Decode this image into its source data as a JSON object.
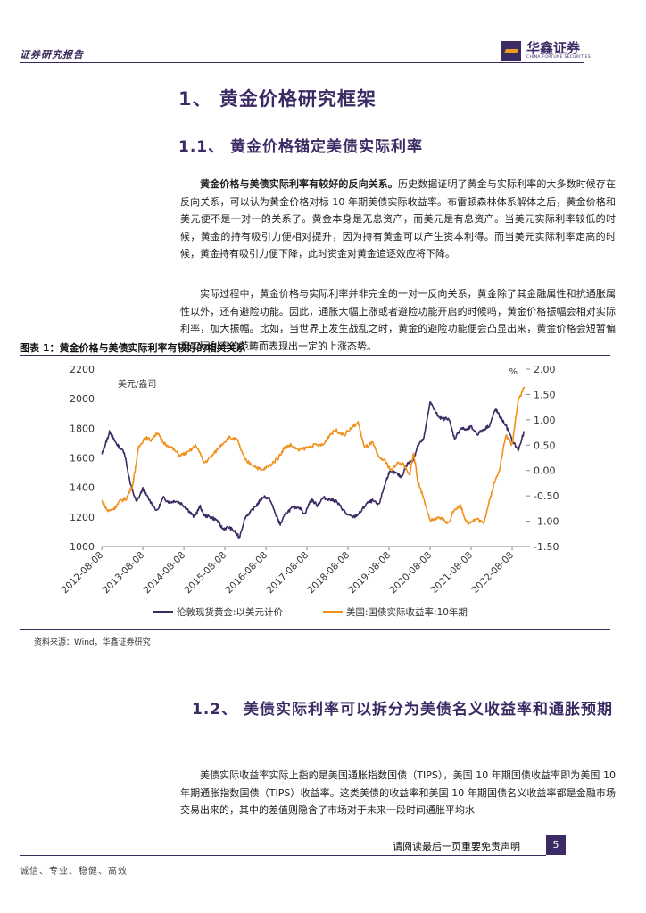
{
  "header": {
    "left_text": "证券研究报告",
    "logo_name": "华鑫证券",
    "logo_sub": "CHINA FORTUNE SECURITIES"
  },
  "section1": {
    "title": "1、 黄金价格研究框架"
  },
  "section11": {
    "title": "1.1、 黄金价格锚定美债实际利率"
  },
  "para1": {
    "lead": "黄金价格与美债实际利率有较好的反向关系。",
    "body": "历史数据证明了黄金与实际利率的大多数时候存在反向关系，可以认为黄金价格对标 10 年期美债实际收益率。布雷顿森林体系解体之后，黄金价格和美元便不是一对一的关系了。黄金本身是无息资产，而美元是有息资产。当美元实际利率较低的时候，黄金的持有吸引力便相对提升，因为持有黄金可以产生资本利得。而当美元实际利率走高的时候，黄金持有吸引力便下降，此时资金对黄金追逐效应将下降。"
  },
  "para2": {
    "body": "实际过程中，黄金价格与实际利率并非完全的一对一反向关系，黄金除了其金融属性和抗通胀属性以外，还有避险功能。因此，通胀大幅上涨或者避险功能开启的时候吗，黄金价格振幅会相对实际利率，加大振幅。比如，当世界上发生战乱之时，黄金的避险功能便会凸显出来，黄金价格会短暂偏离实际利率的范畴而表现出一定的上涨态势。"
  },
  "figure": {
    "title": "图表 1：黄金价格与美债实际利率有较好的相关关系",
    "source": "资料来源：Wind，华鑫证券研究"
  },
  "chart_data": {
    "type": "line",
    "left_unit": "美元/盎司",
    "right_unit": "%",
    "left_ylim": [
      1000,
      2200
    ],
    "left_ticks": [
      "1000",
      "1200",
      "1400",
      "1600",
      "1800",
      "2000",
      "2200"
    ],
    "right_ylim": [
      -1.5,
      2.0
    ],
    "right_ticks": [
      "-1.50",
      "-1.00",
      "-0.50",
      "0.00",
      "0.50",
      "1.00",
      "1.50",
      "2.00"
    ],
    "x_range": [
      2012.6,
      2022.95
    ],
    "x_ticks": [
      "2012-08-08",
      "2013-08-08",
      "2014-08-08",
      "2015-08-08",
      "2016-08-08",
      "2017-08-08",
      "2018-08-08",
      "2019-08-08",
      "2020-08-08",
      "2021-08-08",
      "2022-08-08"
    ],
    "series": [
      {
        "name": "伦敦现货黄金:以美元计价",
        "axis": "left",
        "color": "#3b2a63",
        "x": [
          2012.6,
          2012.7,
          2012.8,
          2012.9,
          2013.0,
          2013.15,
          2013.3,
          2013.45,
          2013.6,
          2013.75,
          2013.95,
          2014.1,
          2014.25,
          2014.4,
          2014.55,
          2014.7,
          2014.85,
          2015.0,
          2015.1,
          2015.25,
          2015.4,
          2015.55,
          2015.7,
          2015.85,
          2015.95,
          2016.1,
          2016.25,
          2016.4,
          2016.55,
          2016.7,
          2016.85,
          2016.95,
          2017.1,
          2017.25,
          2017.4,
          2017.55,
          2017.7,
          2017.85,
          2018.0,
          2018.15,
          2018.3,
          2018.45,
          2018.6,
          2018.75,
          2018.9,
          2019.05,
          2019.2,
          2019.35,
          2019.5,
          2019.6,
          2019.75,
          2019.9,
          2020.05,
          2020.2,
          2020.3,
          2020.45,
          2020.6,
          2020.75,
          2020.9,
          2021.05,
          2021.2,
          2021.35,
          2021.5,
          2021.6,
          2021.75,
          2021.9,
          2022.05,
          2022.2,
          2022.3,
          2022.45,
          2022.6,
          2022.75,
          2022.9
        ],
        "y": [
          1620,
          1700,
          1780,
          1720,
          1680,
          1640,
          1420,
          1300,
          1390,
          1320,
          1240,
          1330,
          1300,
          1310,
          1290,
          1250,
          1200,
          1270,
          1210,
          1200,
          1180,
          1120,
          1130,
          1100,
          1060,
          1200,
          1240,
          1290,
          1340,
          1320,
          1210,
          1150,
          1230,
          1260,
          1270,
          1220,
          1320,
          1280,
          1330,
          1320,
          1310,
          1260,
          1210,
          1200,
          1230,
          1290,
          1310,
          1280,
          1420,
          1500,
          1500,
          1470,
          1560,
          1590,
          1680,
          1730,
          1980,
          1900,
          1860,
          1870,
          1730,
          1800,
          1790,
          1810,
          1760,
          1790,
          1820,
          1930,
          1880,
          1820,
          1720,
          1650,
          1780
        ]
      },
      {
        "name": "美国:国债实际收益率:10年期",
        "axis": "right",
        "color": "#f0901c",
        "x": [
          2012.6,
          2012.75,
          2012.9,
          2013.05,
          2013.2,
          2013.35,
          2013.5,
          2013.65,
          2013.8,
          2013.95,
          2014.1,
          2014.3,
          2014.5,
          2014.7,
          2014.9,
          2015.1,
          2015.3,
          2015.5,
          2015.7,
          2015.9,
          2016.1,
          2016.3,
          2016.5,
          2016.7,
          2016.9,
          2017.05,
          2017.2,
          2017.4,
          2017.6,
          2017.8,
          2018.0,
          2018.15,
          2018.3,
          2018.5,
          2018.7,
          2018.85,
          2019.0,
          2019.2,
          2019.35,
          2019.5,
          2019.65,
          2019.8,
          2019.95,
          2020.1,
          2020.2,
          2020.3,
          2020.45,
          2020.6,
          2020.75,
          2020.9,
          2021.05,
          2021.2,
          2021.35,
          2021.5,
          2021.6,
          2021.75,
          2021.9,
          2022.0,
          2022.15,
          2022.3,
          2022.45,
          2022.6,
          2022.75,
          2022.9
        ],
        "y": [
          -0.6,
          -0.8,
          -0.75,
          -0.6,
          -0.55,
          -0.3,
          0.45,
          0.65,
          0.6,
          0.75,
          0.55,
          0.45,
          0.3,
          0.35,
          0.5,
          0.15,
          0.3,
          0.5,
          0.65,
          0.6,
          0.2,
          0.1,
          0.0,
          0.1,
          0.25,
          0.45,
          0.5,
          0.4,
          0.45,
          0.5,
          0.5,
          0.7,
          0.8,
          0.7,
          0.85,
          0.95,
          0.45,
          0.55,
          0.25,
          0.2,
          0.0,
          0.15,
          0.12,
          -0.1,
          0.35,
          -0.2,
          -0.55,
          -1.0,
          -0.95,
          -0.95,
          -1.05,
          -0.75,
          -0.7,
          -1.05,
          -1.0,
          -0.95,
          -1.05,
          -0.75,
          -0.3,
          0.05,
          0.7,
          0.5,
          1.4,
          1.65
        ]
      }
    ]
  },
  "section12": {
    "title": "1.2、 美债实际利率可以拆分为美债名义收益率和通胀预期"
  },
  "para3": {
    "body": "美债实际收益率实际上指的是美国通胀指数国债（TIPS），美国 10 年期国债收益率即为美国 10 年期通胀指数国债（TIPS）收益率。这类美债的收益率和美国 10 年期国债名义收益率都是金融市场交易出来的，其中的差值则隐含了市场对于未来一段时间通胀平均水"
  },
  "footer": {
    "disclaimer": "请阅读最后一页重要免责声明",
    "page": "5",
    "slogan": "诚信、专业、稳健、高效"
  },
  "colors": {
    "brand": "#3b2a63",
    "accent": "#f0901c"
  }
}
